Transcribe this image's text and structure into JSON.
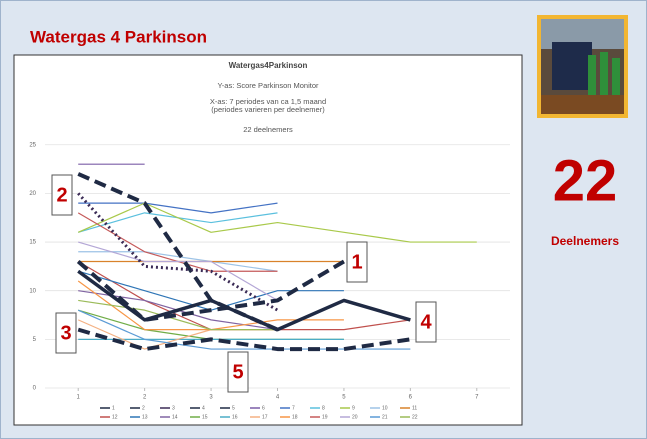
{
  "slide_title": "Watergas 4 Parkinson",
  "count": "22",
  "count_label": "Deelnemers",
  "annotations": [
    "1",
    "2",
    "3",
    "4",
    "5"
  ],
  "chart_data": {
    "type": "line",
    "title": "Watergas4Parkinson",
    "subtitle": [
      "Y-as: Score Parkinson Monitor",
      "X-as: 7 periodes van ca  1,5 maand",
      "(periodes varieren per deelnemer)",
      "22 deelnemers"
    ],
    "x": [
      1,
      2,
      3,
      4,
      5,
      6,
      7
    ],
    "xlim": [
      0.5,
      7.5
    ],
    "xticks": [
      1,
      2,
      3,
      4,
      5,
      6,
      7
    ],
    "ylim": [
      0,
      26
    ],
    "yticks": [
      0,
      5,
      10,
      15,
      20,
      25
    ],
    "grid": true,
    "legend": "bottom",
    "series": [
      {
        "name": "1",
        "color": "#1f2a44",
        "style": "bold",
        "values": [
          12,
          7,
          9,
          6,
          9,
          7,
          null
        ]
      },
      {
        "name": "2",
        "color": "#1f2a44",
        "style": "dashed",
        "values": [
          22,
          19,
          9,
          6,
          null,
          null,
          null
        ]
      },
      {
        "name": "3",
        "color": "#3a2a55",
        "style": "dotted",
        "values": [
          20,
          12.5,
          12,
          8,
          null,
          null,
          null
        ]
      },
      {
        "name": "4",
        "color": "#1f2a44",
        "style": "dashed",
        "values": [
          13,
          7,
          8,
          9,
          13,
          null,
          null
        ]
      },
      {
        "name": "5",
        "color": "#1f2a44",
        "style": "dashed",
        "values": [
          6,
          4,
          5,
          4,
          4,
          5,
          null
        ]
      },
      {
        "name": "6",
        "color": "#7b5ea7",
        "style": "thin",
        "values": [
          23,
          23,
          null,
          null,
          null,
          null,
          null
        ]
      },
      {
        "name": "7",
        "color": "#4472c4",
        "style": "thin",
        "values": [
          19,
          19,
          18,
          19,
          null,
          null,
          null
        ]
      },
      {
        "name": "8",
        "color": "#5bc0de",
        "style": "thin",
        "values": [
          16,
          18,
          17,
          18,
          null,
          null,
          null
        ]
      },
      {
        "name": "9",
        "color": "#a9c94a",
        "style": "thin",
        "values": [
          16,
          19,
          16,
          17,
          16,
          15,
          15
        ]
      },
      {
        "name": "10",
        "color": "#9dc3e6",
        "style": "thin",
        "values": [
          14,
          14,
          13,
          12,
          null,
          null,
          null
        ]
      },
      {
        "name": "11",
        "color": "#d9822b",
        "style": "thin",
        "values": [
          13,
          13,
          13,
          13,
          13,
          null,
          null
        ]
      },
      {
        "name": "12",
        "color": "#c0504d",
        "style": "thin",
        "values": [
          13,
          9,
          6,
          6,
          6,
          7,
          null
        ]
      },
      {
        "name": "13",
        "color": "#2e75b6",
        "style": "thin",
        "values": [
          12,
          10,
          8,
          10,
          10,
          null,
          null
        ]
      },
      {
        "name": "14",
        "color": "#8064a2",
        "style": "thin",
        "values": [
          10,
          9,
          7,
          6,
          null,
          null,
          null
        ]
      },
      {
        "name": "15",
        "color": "#70ad47",
        "style": "thin",
        "values": [
          8,
          6,
          5,
          5,
          5,
          null,
          null
        ]
      },
      {
        "name": "16",
        "color": "#4bacc6",
        "style": "thin",
        "values": [
          5,
          5,
          5,
          5,
          5,
          null,
          null
        ]
      },
      {
        "name": "17",
        "color": "#f4b183",
        "style": "thin",
        "values": [
          7,
          4,
          6,
          6,
          null,
          null,
          null
        ]
      },
      {
        "name": "18",
        "color": "#f79646",
        "style": "thin",
        "values": [
          11,
          6,
          6,
          7,
          7,
          null,
          null
        ]
      },
      {
        "name": "19",
        "color": "#c55a5a",
        "style": "thin",
        "values": [
          18,
          14,
          12,
          12,
          null,
          null,
          null
        ]
      },
      {
        "name": "20",
        "color": "#b4a7d6",
        "style": "thin",
        "values": [
          15,
          13,
          13,
          9,
          null,
          null,
          null
        ]
      },
      {
        "name": "21",
        "color": "#5b9bd5",
        "style": "thin",
        "values": [
          8,
          5,
          4,
          4,
          4,
          4,
          null
        ]
      },
      {
        "name": "22",
        "color": "#9bbb59",
        "style": "thin",
        "values": [
          9,
          8,
          6,
          6,
          null,
          null,
          null
        ]
      }
    ]
  }
}
